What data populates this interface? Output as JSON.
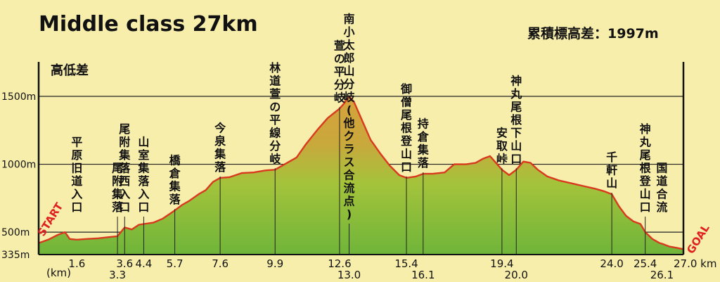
{
  "chart_data": {
    "type": "area",
    "title": "Middle class 27km",
    "subtitle": "累積標高差：1997m",
    "ylabel": "高低差",
    "xunit": "(km)",
    "start_label": "START",
    "goal_label": "GOAL",
    "ylim": [
      335,
      1700
    ],
    "xlim": [
      0,
      27.0
    ],
    "yticks": [
      {
        "value": 335,
        "label": "335m"
      },
      {
        "value": 500,
        "label": "500m"
      },
      {
        "value": 1000,
        "label": "1000m"
      },
      {
        "value": 1500,
        "label": "1500m"
      }
    ],
    "x": [
      0,
      0.4,
      0.8,
      1.1,
      1.3,
      1.6,
      2.0,
      2.5,
      3.0,
      3.3,
      3.6,
      3.9,
      4.2,
      4.4,
      4.8,
      5.2,
      5.7,
      6.0,
      6.3,
      6.7,
      7.0,
      7.3,
      7.6,
      8.0,
      8.5,
      9.0,
      9.5,
      9.9,
      10.3,
      10.8,
      11.2,
      11.7,
      12.1,
      12.6,
      12.8,
      13.0,
      13.2,
      13.5,
      13.9,
      14.3,
      14.7,
      15.1,
      15.4,
      15.8,
      16.1,
      16.5,
      17.0,
      17.4,
      17.9,
      18.3,
      18.6,
      18.9,
      19.2,
      19.4,
      19.7,
      20.0,
      20.3,
      20.6,
      20.9,
      21.3,
      21.8,
      22.3,
      22.8,
      23.3,
      23.7,
      24.0,
      24.3,
      24.6,
      24.9,
      25.2,
      25.4,
      25.7,
      26.0,
      26.1,
      26.4,
      26.7,
      27.0
    ],
    "y": [
      420,
      445,
      480,
      500,
      450,
      445,
      450,
      455,
      465,
      470,
      535,
      520,
      555,
      560,
      570,
      600,
      660,
      700,
      730,
      780,
      810,
      870,
      900,
      905,
      935,
      940,
      955,
      960,
      1000,
      1050,
      1150,
      1260,
      1340,
      1410,
      1450,
      1500,
      1460,
      1340,
      1180,
      1080,
      990,
      920,
      900,
      910,
      930,
      930,
      940,
      1000,
      1000,
      1010,
      1040,
      1060,
      1000,
      960,
      920,
      960,
      1020,
      1010,
      960,
      910,
      880,
      860,
      840,
      820,
      800,
      780,
      690,
      620,
      580,
      560,
      500,
      450,
      420,
      415,
      395,
      385,
      375
    ],
    "fill_colors": {
      "top": "#d6a23c",
      "middle": "#a4c33b",
      "bottom": "#6fb53a"
    },
    "line_color": "#d93a1f",
    "grid": true,
    "waypoints": [
      {
        "x": 1.6,
        "tick": "1.6",
        "tick_row": 0,
        "label": "平原旧道入口",
        "show_line": false
      },
      {
        "x": 3.3,
        "tick": "3.3",
        "tick_row": 1,
        "label": "尾附集落",
        "show_line": true
      },
      {
        "x": 3.6,
        "tick": "3.6",
        "tick_row": 0,
        "label": "尾附集落西入口",
        "show_line": true
      },
      {
        "x": 4.4,
        "tick": "4.4",
        "tick_row": 0,
        "label": "山室集落入口",
        "show_line": true
      },
      {
        "x": 5.7,
        "tick": "5.7",
        "tick_row": 0,
        "label": "橋倉集落",
        "show_line": true
      },
      {
        "x": 7.6,
        "tick": "7.6",
        "tick_row": 0,
        "label": "今泉集落",
        "show_line": true
      },
      {
        "x": 9.9,
        "tick": "9.9",
        "tick_row": 0,
        "label": "林道萱の平線分岐",
        "show_line": true
      },
      {
        "x": 12.6,
        "tick": "12.6",
        "tick_row": 0,
        "label": "萱の平分岐",
        "show_line": true
      },
      {
        "x": 13.0,
        "tick": "13.0",
        "tick_row": 1,
        "label": "南小太郎山分岐(他クラス合流点)",
        "show_line": true
      },
      {
        "x": 15.4,
        "tick": "15.4",
        "tick_row": 0,
        "label": "御僧尾根登山口",
        "show_line": true
      },
      {
        "x": 16.1,
        "tick": "16.1",
        "tick_row": 1,
        "label": "持倉集落",
        "show_line": true
      },
      {
        "x": 19.4,
        "tick": "19.4",
        "tick_row": 0,
        "label": "安取峠",
        "show_line": true
      },
      {
        "x": 20.0,
        "tick": "20.0",
        "tick_row": 1,
        "label": "神丸尾根下山口",
        "show_line": true
      },
      {
        "x": 24.0,
        "tick": "24.0",
        "tick_row": 0,
        "label": "千軒山",
        "show_line": true
      },
      {
        "x": 25.4,
        "tick": "25.4",
        "tick_row": 0,
        "label": "神丸尾根登山口",
        "show_line": true
      },
      {
        "x": 26.1,
        "tick": "26.1",
        "tick_row": 1,
        "label": "国道合流",
        "show_line": false
      },
      {
        "x": 27.0,
        "tick": "27.0 km",
        "tick_row": 0,
        "label": "",
        "show_line": false
      }
    ]
  }
}
